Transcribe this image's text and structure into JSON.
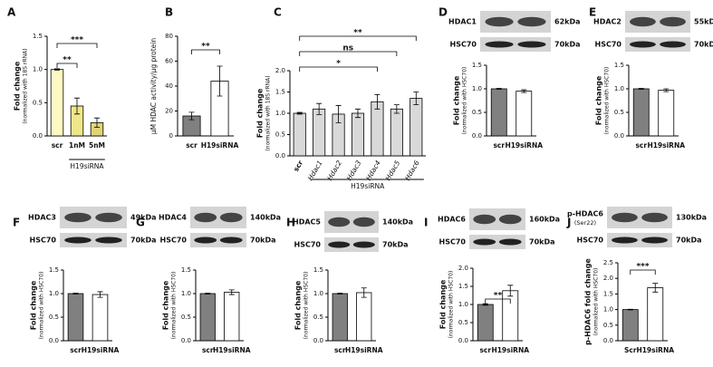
{
  "chart_data": [
    {
      "type": "bar",
      "panel": "A",
      "ylabel": "Fold change",
      "ylabel_sub": "(normalized with 18S rRNA)",
      "categories": [
        "scr",
        "1nM",
        "5nM"
      ],
      "values": [
        1.0,
        0.45,
        0.2
      ],
      "errors": [
        0.01,
        0.12,
        0.07
      ],
      "colors": [
        "#fdf9c4",
        "#efe68a",
        "#e0d476"
      ],
      "ylim": [
        0,
        1.5
      ],
      "yticks": [
        {
          "value": 0,
          "label": "0.0"
        },
        0.5,
        {
          "value": 1,
          "label": "1.0"
        },
        1.5
      ],
      "group_label": "H19siRNA",
      "annotations": [
        "**",
        "***"
      ]
    },
    {
      "type": "bar",
      "panel": "B",
      "ylabel": "µM HDAC activity/µg protein",
      "categories": [
        "scr",
        "H19siRNA"
      ],
      "values": [
        16,
        44
      ],
      "errors": [
        3,
        12
      ],
      "colors": [
        "#808080",
        "#ffffff"
      ],
      "ylim": [
        0,
        80
      ],
      "yticks": [
        0,
        20,
        40,
        60,
        80
      ],
      "annotations": [
        "**"
      ]
    },
    {
      "type": "bar",
      "panel": "C",
      "ylabel": "Fold change",
      "ylabel_sub": "(normalized with 18S rRNA)",
      "categories": [
        "scr",
        "Hdac1",
        "Hdac2",
        "Hdac3",
        "Hdac4",
        "Hdac5",
        "Hdac6"
      ],
      "values": [
        1.0,
        1.1,
        0.98,
        1.0,
        1.27,
        1.1,
        1.35
      ],
      "errors": [
        0.02,
        0.13,
        0.2,
        0.1,
        0.17,
        0.1,
        0.15
      ],
      "colors": [
        "#d9d9d9",
        "#d9d9d9",
        "#d9d9d9",
        "#d9d9d9",
        "#d9d9d9",
        "#d9d9d9",
        "#d9d9d9"
      ],
      "ylim": [
        0,
        2
      ],
      "yticks": [
        {
          "value": 0,
          "label": "0.0"
        },
        0.5,
        {
          "value": 1,
          "label": "1.0"
        },
        1.5,
        {
          "value": 2,
          "label": "2.0"
        }
      ],
      "group_label": "H19siRNA",
      "annotations": [
        "**",
        "ns",
        "*"
      ]
    },
    {
      "type": "bar",
      "panel": "D",
      "blot": {
        "target": "HDAC1",
        "target_kda": "62kDa",
        "control": "HSC70",
        "control_kda": "70kDa"
      },
      "ylabel": "Fold change",
      "ylabel_sub": "(normalized with HSC70)",
      "categories": [
        "scr",
        "H19siRNA"
      ],
      "values": [
        1.0,
        0.95
      ],
      "errors": [
        0.01,
        0.03
      ],
      "colors": [
        "#808080",
        "#ffffff"
      ],
      "ylim": [
        0,
        1.5
      ],
      "yticks": [
        {
          "value": 0,
          "label": "0.0"
        },
        0.5,
        {
          "value": 1,
          "label": "1.0"
        },
        1.5
      ]
    },
    {
      "type": "bar",
      "panel": "E",
      "blot": {
        "target": "HDAC2",
        "target_kda": "55kDa",
        "control": "HSC70",
        "control_kda": "70kDa"
      },
      "ylabel": "Fold change",
      "ylabel_sub": "(normalized with HSC70)",
      "categories": [
        "scr",
        "H19siRNA"
      ],
      "values": [
        1.0,
        0.97
      ],
      "errors": [
        0.01,
        0.03
      ],
      "colors": [
        "#808080",
        "#ffffff"
      ],
      "ylim": [
        0,
        1.5
      ],
      "yticks": [
        {
          "value": 0,
          "label": "0.0"
        },
        0.5,
        {
          "value": 1,
          "label": "1.0"
        },
        1.5
      ]
    },
    {
      "type": "bar",
      "panel": "F",
      "blot": {
        "target": "HDAC3",
        "target_kda": "49kDa",
        "control": "HSC70",
        "control_kda": "70kDa"
      },
      "ylabel": "Fold change",
      "ylabel_sub": "(normalized with HSC70)",
      "categories": [
        "scr",
        "H19siRNA"
      ],
      "values": [
        1.0,
        0.98
      ],
      "errors": [
        0.01,
        0.06
      ],
      "colors": [
        "#808080",
        "#ffffff"
      ],
      "ylim": [
        0,
        1.5
      ],
      "yticks": [
        {
          "value": 0,
          "label": "0.0"
        },
        0.5,
        {
          "value": 1,
          "label": "1.0"
        },
        1.5
      ]
    },
    {
      "type": "bar",
      "panel": "G",
      "blot": {
        "target": "HDAC4",
        "target_kda": "140kDa",
        "control": "HSC70",
        "control_kda": "70kDa"
      },
      "ylabel": "Fold change",
      "ylabel_sub": "(normalized with HSC70)",
      "categories": [
        "scr",
        "H19siRNA"
      ],
      "values": [
        1.0,
        1.03
      ],
      "errors": [
        0.01,
        0.05
      ],
      "colors": [
        "#808080",
        "#ffffff"
      ],
      "ylim": [
        0,
        1.5
      ],
      "yticks": [
        {
          "value": 0,
          "label": "0.0"
        },
        0.5,
        {
          "value": 1,
          "label": "1.0"
        },
        1.5
      ]
    },
    {
      "type": "bar",
      "panel": "H",
      "blot": {
        "target": "HDAC5",
        "target_kda": "140kDa",
        "control": "HSC70",
        "control_kda": "70kDa"
      },
      "ylabel": "Fold change",
      "ylabel_sub": "(normalized with HSC70)",
      "categories": [
        "scr",
        "H19siRNA"
      ],
      "values": [
        1.0,
        1.02
      ],
      "errors": [
        0.01,
        0.1
      ],
      "colors": [
        "#808080",
        "#ffffff"
      ],
      "ylim": [
        0,
        1.5
      ],
      "yticks": [
        {
          "value": 0,
          "label": "0.0"
        },
        0.5,
        {
          "value": 1,
          "label": "1.0"
        },
        1.5
      ]
    },
    {
      "type": "bar",
      "panel": "I",
      "blot": {
        "target": "HDAC6",
        "target_kda": "160kDa",
        "control": "HSC70",
        "control_kda": "70kDa"
      },
      "ylabel": "Fold change",
      "ylabel_sub": "(normalized with HSC70)",
      "categories": [
        "scr",
        "H19siRNA"
      ],
      "values": [
        1.0,
        1.38
      ],
      "errors": [
        0.02,
        0.15
      ],
      "colors": [
        "#808080",
        "#ffffff"
      ],
      "ylim": [
        0,
        2
      ],
      "yticks": [
        {
          "value": 0,
          "label": "0.0"
        },
        0.5,
        {
          "value": 1,
          "label": "1.0"
        },
        1.5,
        {
          "value": 2,
          "label": "2.0"
        }
      ],
      "annotations": [
        "**"
      ]
    },
    {
      "type": "bar",
      "panel": "J",
      "blot": {
        "target": "p-HDAC6",
        "target_note": "(Ser22)",
        "target_kda": "130kDa",
        "control": "HSC70",
        "control_kda": "70kDa"
      },
      "ylabel": "p-HDAC6 fold change",
      "ylabel_sub": "(normalized with HSC70)",
      "categories": [
        "Scr",
        "H19siRNA"
      ],
      "values": [
        1.0,
        1.7
      ],
      "errors": [
        0.01,
        0.14
      ],
      "colors": [
        "#808080",
        "#ffffff"
      ],
      "ylim": [
        0,
        2.5
      ],
      "yticks": [
        {
          "value": 0,
          "label": "0.0"
        },
        0.5,
        {
          "value": 1,
          "label": "1.0"
        },
        1.5,
        {
          "value": 2,
          "label": "2.0"
        },
        2.5
      ],
      "annotations": [
        "***"
      ]
    }
  ]
}
